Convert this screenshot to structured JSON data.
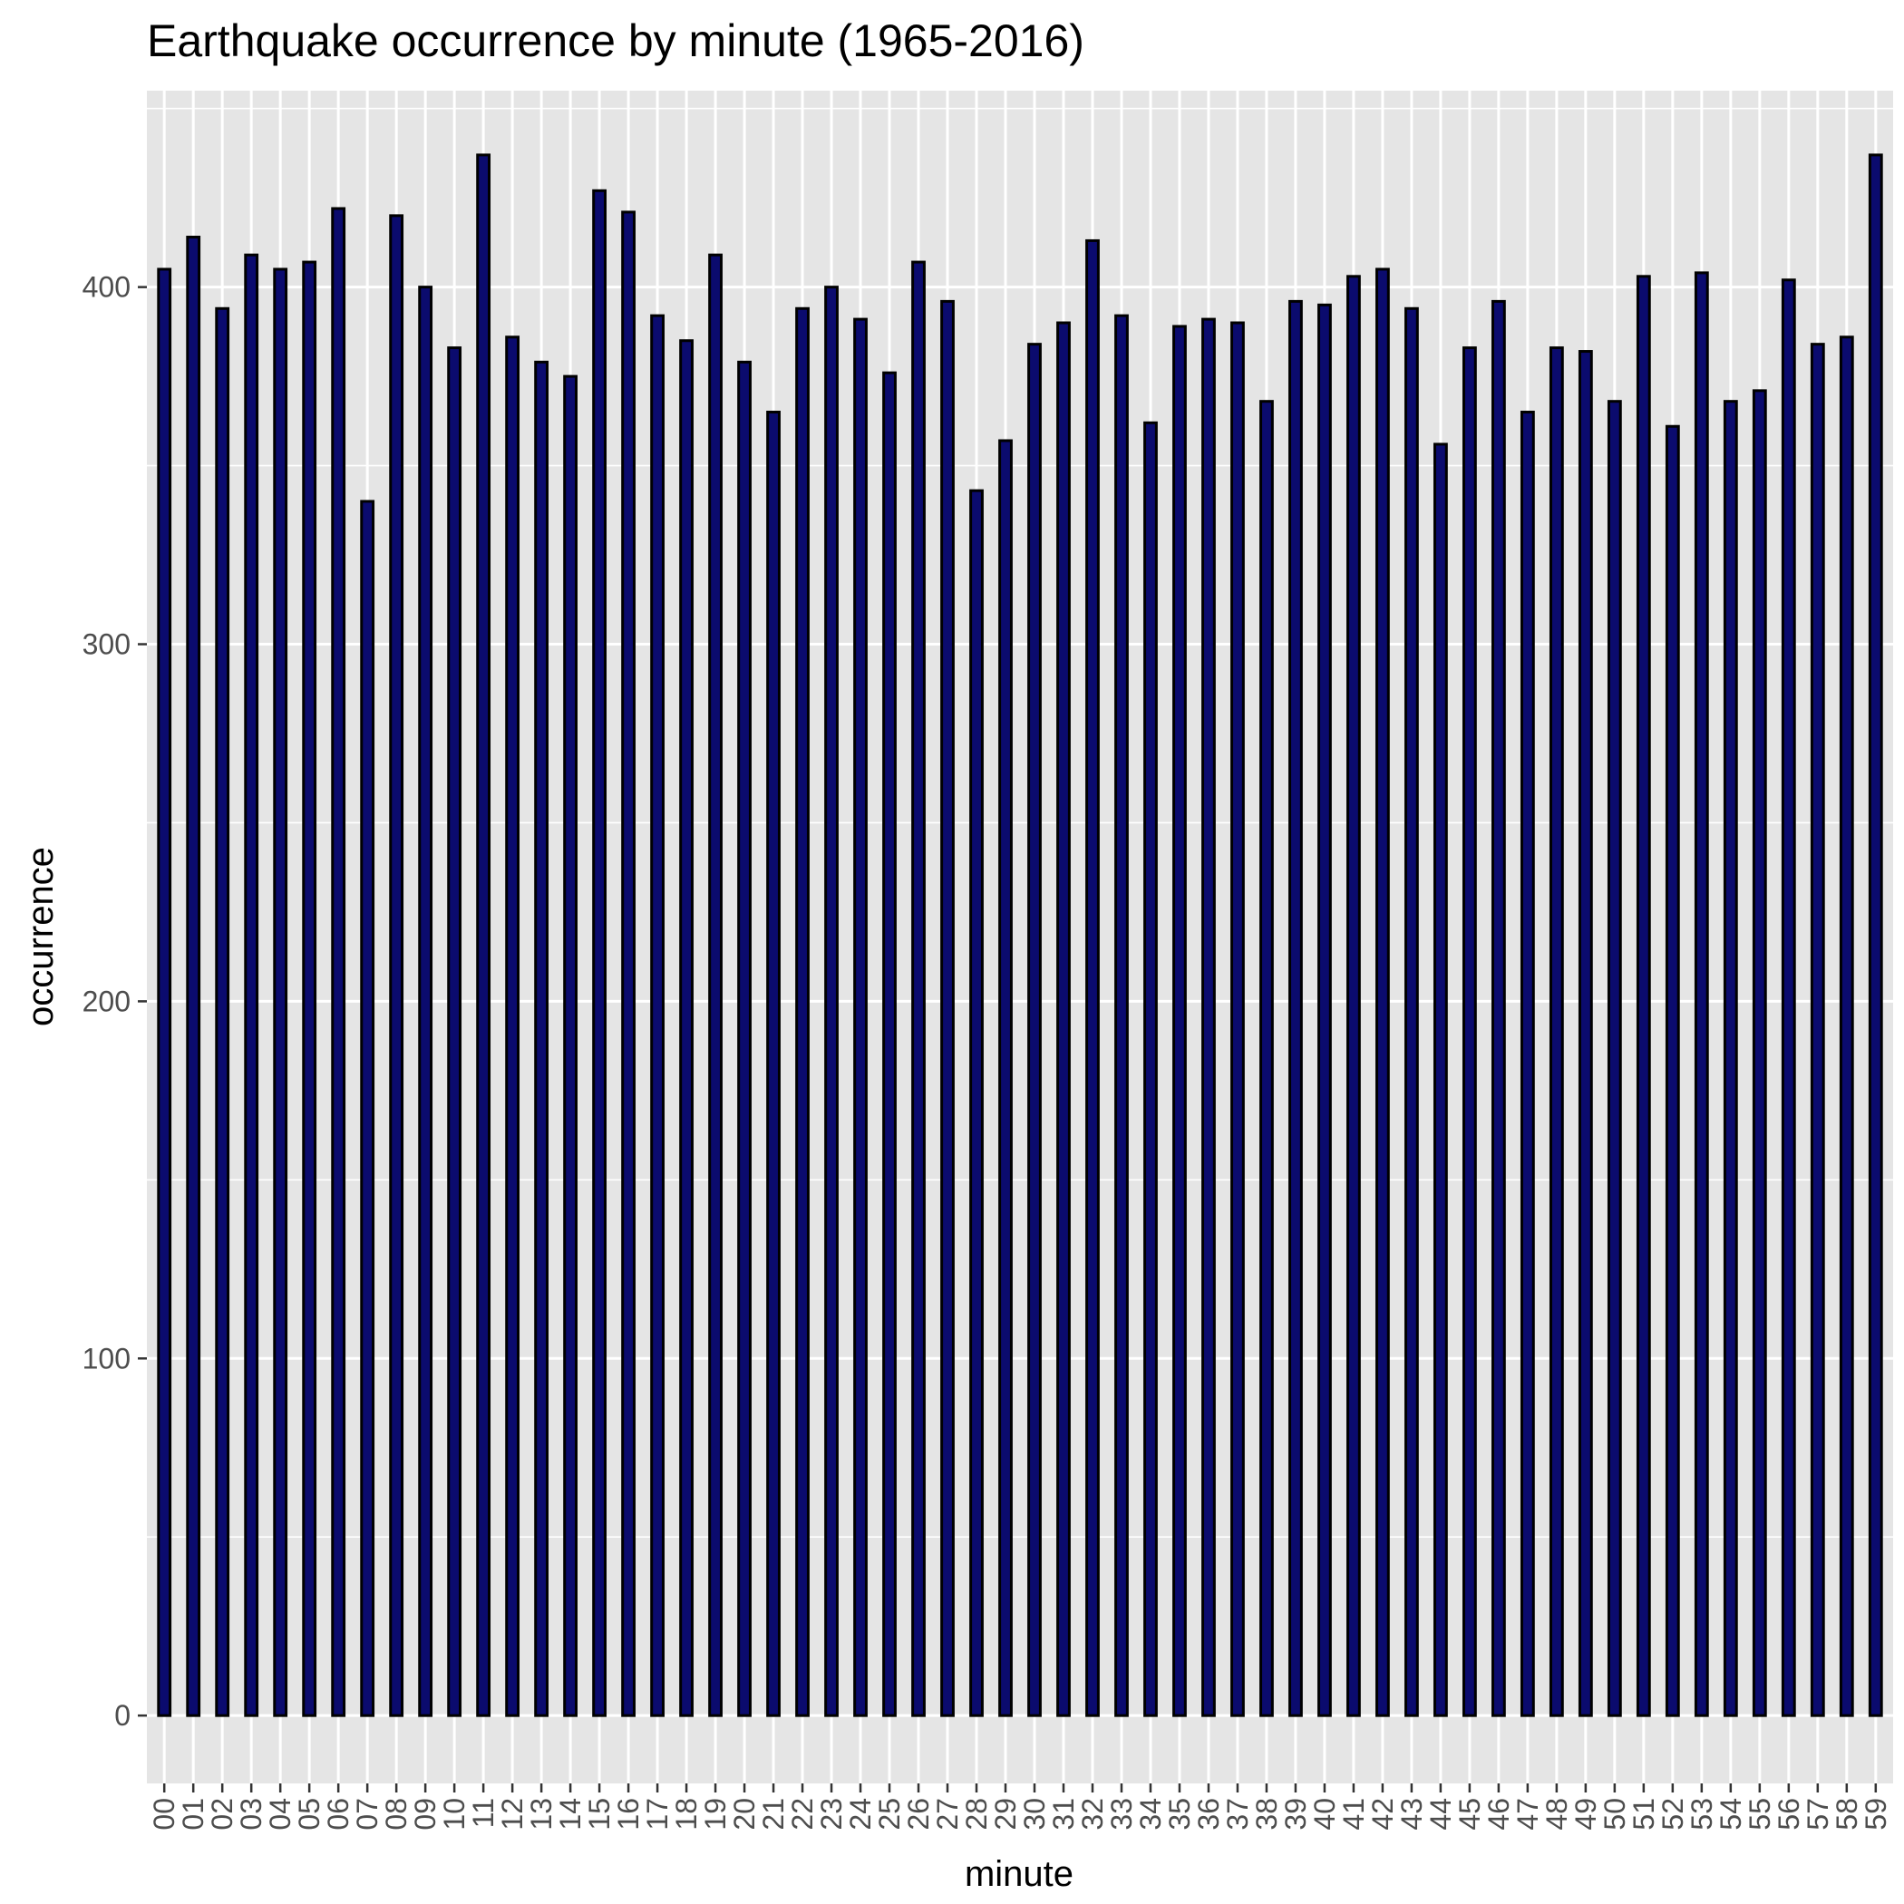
{
  "chart_data": {
    "type": "bar",
    "title": "Earthquake occurrence by minute (1965-2016)",
    "xlabel": "minute",
    "ylabel": "occurrence",
    "categories": [
      "00",
      "01",
      "02",
      "03",
      "04",
      "05",
      "06",
      "07",
      "08",
      "09",
      "10",
      "11",
      "12",
      "13",
      "14",
      "15",
      "16",
      "17",
      "18",
      "19",
      "20",
      "21",
      "22",
      "23",
      "24",
      "25",
      "26",
      "27",
      "28",
      "29",
      "30",
      "31",
      "32",
      "33",
      "34",
      "35",
      "36",
      "37",
      "38",
      "39",
      "40",
      "41",
      "42",
      "43",
      "44",
      "45",
      "46",
      "47",
      "48",
      "49",
      "50",
      "51",
      "52",
      "53",
      "54",
      "55",
      "56",
      "57",
      "58",
      "59"
    ],
    "values": [
      405,
      414,
      394,
      409,
      405,
      407,
      422,
      340,
      420,
      400,
      383,
      437,
      386,
      379,
      375,
      427,
      421,
      392,
      385,
      409,
      379,
      365,
      394,
      400,
      391,
      376,
      407,
      396,
      343,
      357,
      384,
      390,
      413,
      392,
      362,
      389,
      391,
      390,
      368,
      396,
      395,
      403,
      405,
      394,
      356,
      383,
      396,
      365,
      383,
      382,
      368,
      403,
      361,
      404,
      368,
      371,
      402,
      384,
      386,
      437
    ],
    "y_ticks": [
      0,
      100,
      200,
      300,
      400
    ],
    "ylim": [
      -19,
      455
    ],
    "grid": true,
    "legend": "none",
    "colors": {
      "panel_background": "#e5e5e5",
      "grid_line": "#ffffff",
      "bar_fill": "#0b0b6e",
      "bar_outline": "#000000",
      "tick_label": "#4d4d4d",
      "text": "#000000"
    }
  }
}
